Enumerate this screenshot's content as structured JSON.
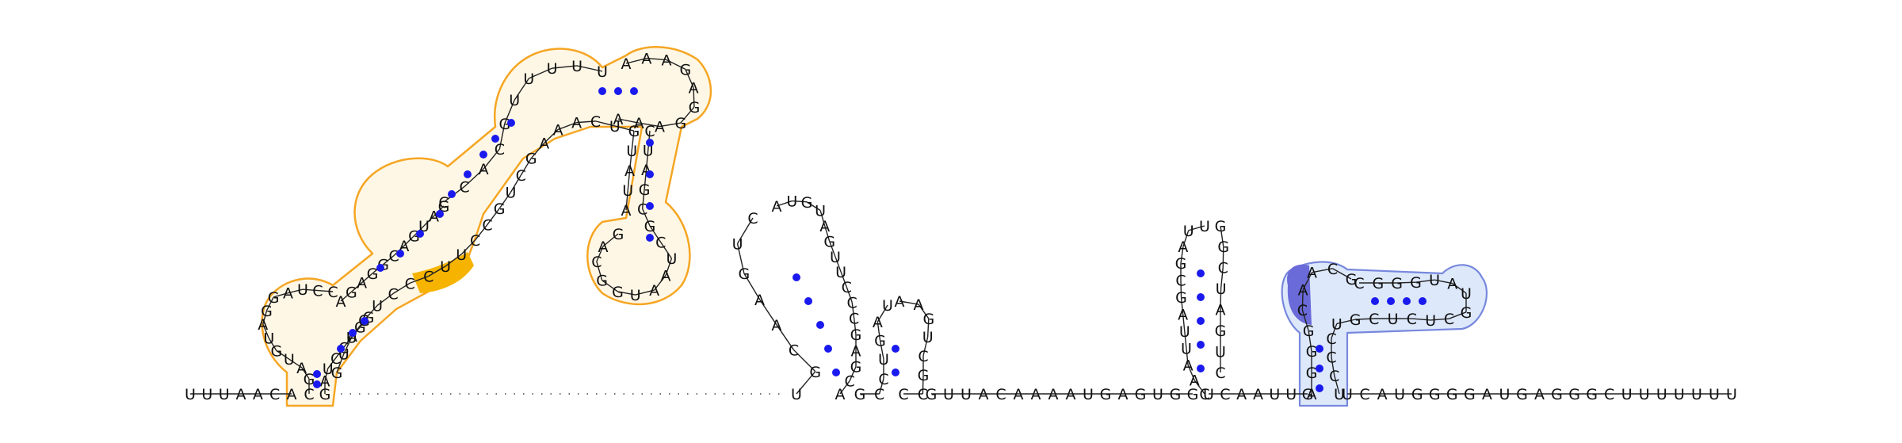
{
  "domain_title": "",
  "colors": {
    "pair_dot": "#1a1aee",
    "orange_outline": "#f5a623",
    "orange_fill": "#fff7e6",
    "orange_highlight": "#f6b400",
    "blue_outline": "#7788dd",
    "blue_fill": "#dde8fb",
    "blue_highlight": "#6a6ad8"
  },
  "strands": [
    {
      "id": "tail-5prime",
      "seq": "UUUAACA"
    },
    {
      "id": "hp1-5prime-strand",
      "seq": "CGAUGUAGGAUCC"
    },
    {
      "id": "multiloop-A",
      "seq": "AGAGGCAGUAGCCACGUUUUUAAAGAGGAAACUAGCGCUAAUGGCAGAUAUGUCAAAGCUGCCUUCCCUGAUG"
    },
    {
      "id": "hp2",
      "seq": "UGCAAGUCAUGUAGUUCCCGAGCA"
    },
    {
      "id": "hp3",
      "seq": "GCCUGAUAAGUCGCC"
    },
    {
      "id": "linker",
      "seq": "GUUACAAAAUGAGUGG"
    },
    {
      "id": "hp4",
      "seq": "CAAUUAGCGAUUGGCUAGUCUCAAUUG"
    },
    {
      "id": "hp5",
      "seq": "AGGGCAACGCGGGUAUGCUCUCGUCCCU"
    },
    {
      "id": "tail-3prime",
      "seq": "UCAUGGGGAUGAGGGCUUUUUUU"
    }
  ]
}
